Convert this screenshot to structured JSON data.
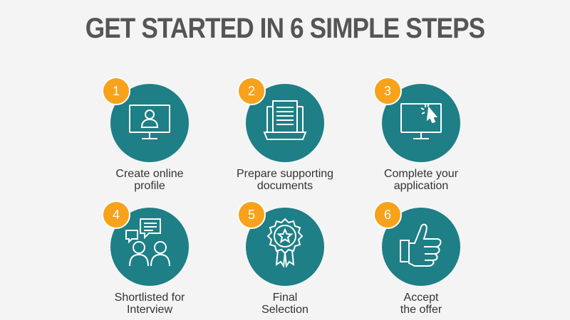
{
  "title": "GET STARTED IN 6 SIMPLE STEPS",
  "colors": {
    "teal": "#1e7f86",
    "orange": "#f7a21b",
    "title": "#555555",
    "text": "#333333"
  },
  "steps": [
    {
      "number": "1",
      "line1": "Create online",
      "line2": "profile",
      "icon": "monitor-user-icon"
    },
    {
      "number": "2",
      "line1": "Prepare supporting",
      "line2": "documents",
      "icon": "documents-icon"
    },
    {
      "number": "3",
      "line1": "Complete your",
      "line2": "application",
      "icon": "monitor-cursor-icon"
    },
    {
      "number": "4",
      "line1": "Shortlisted for",
      "line2": "Interview",
      "icon": "interview-icon"
    },
    {
      "number": "5",
      "line1": "Final",
      "line2": "Selection",
      "icon": "award-badge-icon"
    },
    {
      "number": "6",
      "line1": "Accept",
      "line2": "the offer",
      "icon": "thumbs-up-icon"
    }
  ]
}
